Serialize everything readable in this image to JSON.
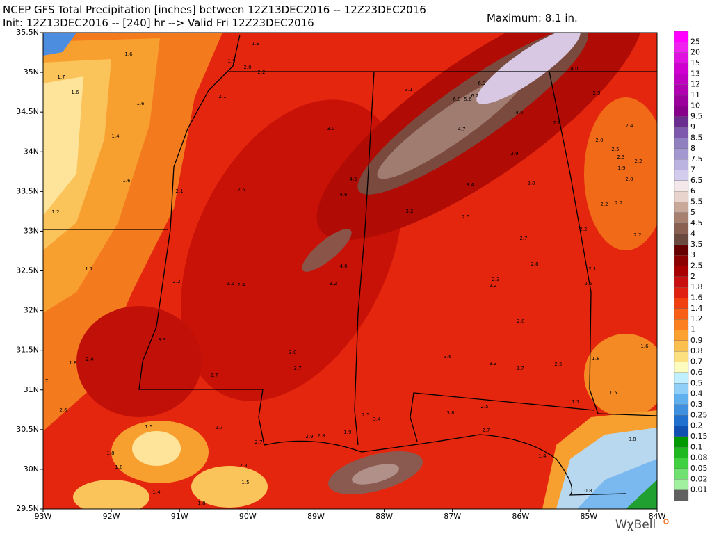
{
  "header": {
    "line1": "NCEP GFS Total Precipitation [inches] between 12Z13DEC2016 -- 12Z23DEC2016",
    "line2": "Init: 12Z13DEC2016 -- [240] hr --> Valid Fri 12Z23DEC2016",
    "maximum": "Maximum: 8.1 in."
  },
  "lat_labels": [
    "35.5N",
    "35N",
    "34.5N",
    "34N",
    "33.5N",
    "33N",
    "32.5N",
    "32N",
    "31.5N",
    "31N",
    "30.5N",
    "30N",
    "29.5N"
  ],
  "lon_labels": [
    "93W",
    "92W",
    "91W",
    "90W",
    "89W",
    "88W",
    "87W",
    "86W",
    "85W",
    "84W"
  ],
  "colorbar_labels": [
    "25",
    "20",
    "15",
    "13",
    "12",
    "11",
    "10",
    "9.5",
    "9",
    "8.5",
    "8",
    "7.5",
    "7",
    "6.5",
    "6",
    "5.5",
    "5",
    "4.5",
    "4",
    "3.5",
    "3",
    "2.5",
    "2",
    "1.8",
    "1.6",
    "1.4",
    "1.2",
    "1",
    "0.9",
    "0.8",
    "0.7",
    "0.6",
    "0.5",
    "0.4",
    "0.3",
    "0.25",
    "0.2",
    "0.15",
    "0.1",
    "0.08",
    "0.05",
    "0.02",
    "0.01"
  ],
  "map_labels": [
    "1.6",
    "1.9",
    "1.9",
    "2.0",
    "2.2",
    "1.7",
    "1.6",
    "1.6",
    "2.1",
    "3.1",
    "6.3",
    "6.0",
    "5.6",
    "6.2",
    "4.0",
    "2.5",
    "1.4",
    "3.0",
    "4.0",
    "4.7",
    "2.6",
    "2.4",
    "2.0",
    "2.5",
    "2.3",
    "2.2",
    "1.9",
    "2.9",
    "2.0",
    "1.6",
    "4.5",
    "4.6",
    "3.4",
    "2.0",
    "2.1",
    "2.5",
    "3.2",
    "2.2",
    "2.2",
    "1.2",
    "2.5",
    "2.2",
    "2.2",
    "2.7",
    "4.0",
    "1.7",
    "2.8",
    "2.1",
    "2.2",
    "2.2",
    "2.4",
    "3.2",
    "2.3",
    "2.2",
    "2.5",
    "2.8",
    "3.3",
    "1.6",
    "3.0",
    "3.6",
    "1.8",
    "2.4",
    "1.8",
    "3.7",
    "3.3",
    "2.7",
    "2.5",
    "2.7",
    ".7",
    "1.5",
    "1.7",
    "2.6",
    "2.5",
    "3.8",
    "2.5",
    "3.4",
    "1.5",
    "2.7",
    "2.7",
    "1.9",
    "2.9",
    "2.8",
    "0.8",
    "2.7",
    "1.8",
    "1.4",
    "1.8",
    "2.3",
    "1.5",
    "1.4",
    "1.8",
    "0.8"
  ],
  "logo": "WχBell"
}
